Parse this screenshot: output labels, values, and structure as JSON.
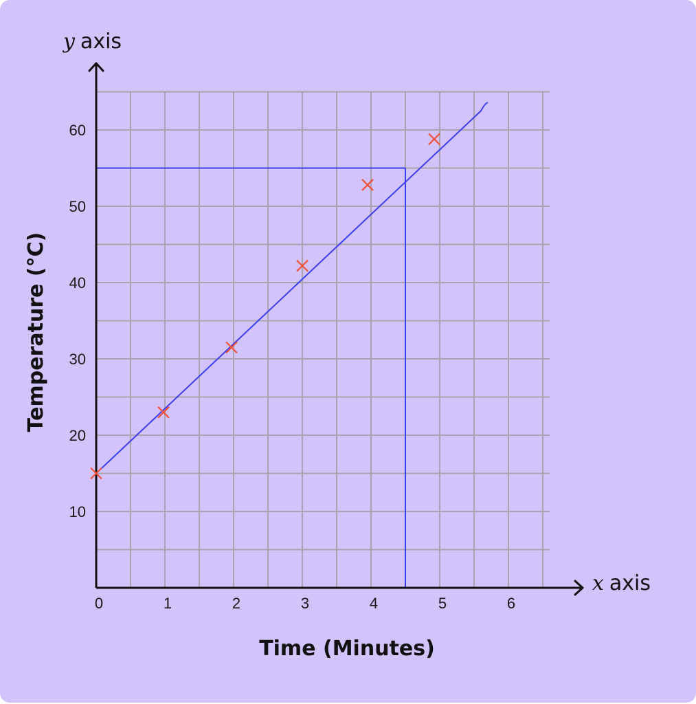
{
  "chart_data": {
    "type": "scatter",
    "title": "",
    "xlabel": "Time (Minutes)",
    "ylabel": "Temperature (°C)",
    "x_axis_name": {
      "var": "x",
      "word": "axis"
    },
    "y_axis_name": {
      "var": "y",
      "word": "axis"
    },
    "xlim": [
      0,
      6
    ],
    "ylim": [
      0,
      65
    ],
    "grid": true,
    "xticks": [
      "0",
      "1",
      "2",
      "3",
      "4",
      "5",
      "6"
    ],
    "yticks": [
      "10",
      "20",
      "30",
      "40",
      "50",
      "60"
    ],
    "points": [
      {
        "x": 0.0,
        "y": 15.0
      },
      {
        "x": 0.98,
        "y": 23.0
      },
      {
        "x": 1.97,
        "y": 31.5
      },
      {
        "x": 3.0,
        "y": 42.2
      },
      {
        "x": 3.95,
        "y": 52.8
      },
      {
        "x": 4.92,
        "y": 58.8
      }
    ],
    "best_fit": [
      {
        "x": 0.0,
        "y": 15.0
      },
      {
        "x": 5.6,
        "y": 62.5
      },
      {
        "x": 5.7,
        "y": 63.6
      }
    ],
    "reading": {
      "x": 4.5,
      "y": 55
    },
    "colors": {
      "background": "#d3c3fb",
      "grid": "#a8a4ae",
      "axis": "#111111",
      "fit_line": "#3d3df0",
      "marker": "#f0523a"
    }
  }
}
